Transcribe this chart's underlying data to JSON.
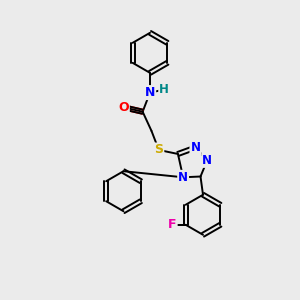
{
  "background_color": "#ebebeb",
  "atom_colors": {
    "C": "#000000",
    "N": "#0000ff",
    "O": "#ff0000",
    "S": "#ccaa00",
    "F": "#ee00aa",
    "H": "#008888"
  },
  "bond_color": "#000000",
  "bond_width": 1.4,
  "figsize": [
    3.0,
    3.0
  ],
  "dpi": 100
}
